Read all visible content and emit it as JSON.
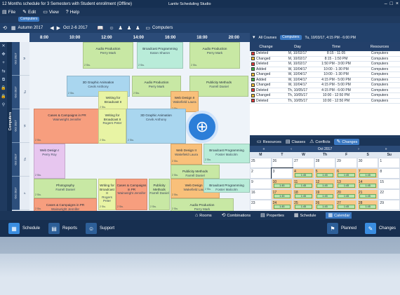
{
  "title": "12 Months schedule for 3 Semesters with Student enrollment",
  "title_suffix": "(Offline)",
  "app_name": "Lantiv Scheduling Studio",
  "menu": [
    "File",
    "Edit",
    "View",
    "Help"
  ],
  "view_selector": "Computers",
  "term": "Autumn 2017",
  "date_range": "Oct 2-6 2017",
  "resource_type": "Computers",
  "right_filter": {
    "all_courses": "All Courses",
    "computers": "Computers",
    "datetime": "Tu, 10/03/17, 4:15 PM - 6:00 PM",
    "all_types": "All Types"
  },
  "times": [
    "8:00",
    "10:00",
    "12:00",
    "14:00",
    "16:00",
    "18:00",
    "20:00"
  ],
  "resource_label": "Computers",
  "weeks": [
    "Oct 2017",
    "Oct 2017",
    "Oct 2017",
    "Oct 2017",
    "Oct 2017"
  ],
  "days": [
    "M",
    "Tu",
    "W",
    "Th",
    "F"
  ],
  "events": [
    {
      "name": "Audio Production",
      "teacher": "Perry Mark",
      "color": "#c8e8a4",
      "corner": "2 Stu."
    },
    {
      "name": "Broadcast Programming",
      "teacher": "Eaton Sharon",
      "color": "#b9ecd9",
      "corner": "2 Stu."
    },
    {
      "name": "Audio Production",
      "teacher": "Perry Mark",
      "color": "#c8e8a4",
      "corner": "2 Stu."
    },
    {
      "name": "3D Graphic Animation",
      "teacher": "Cevik Anthony",
      "color": "#a9d6ef",
      "corner": "2 Stu."
    },
    {
      "name": "Audio Production",
      "teacher": "Perry Mark",
      "color": "#c8e8a4",
      "corner": "2 Stu."
    },
    {
      "name": "Publicity Methods",
      "teacher": "Farrell Daniel",
      "color": "#c8e8a4",
      "corner": "2 Stu."
    },
    {
      "name": "Writing for Broadcast II",
      "teacher": "",
      "color": "#e8f4a4",
      "corner": "2 Stu."
    },
    {
      "name": "Web Design II",
      "teacher": "Wakefield Laura",
      "color": "#f9c07a",
      "corner": "2 Stu."
    },
    {
      "name": "Cases & Campaigns in PR",
      "teacher": "Wainwright Jennifer",
      "color": "#f79e7e",
      "corner": "2 Stu."
    },
    {
      "name": "Writing for Broadcast II",
      "teacher": "Rogers Peter",
      "color": "#e8f4a4",
      "corner": "2 Stu."
    },
    {
      "name": "3D Graphic Animation",
      "teacher": "Cevik Anthony",
      "color": "#a9d6ef",
      "corner": "2 Stu."
    },
    {
      "name": "Web Design I",
      "teacher": "Perry Roy",
      "color": "#e7c6ef",
      "corner": "2 Stu."
    },
    {
      "name": "Web Design II",
      "teacher": "Wakefield Laura",
      "color": "#f9c07a",
      "corner": "2 Stu."
    },
    {
      "name": "Broadcast Programming",
      "teacher": "Foster Malcolm",
      "color": "#b9ecd9",
      "corner": "2 Stu."
    },
    {
      "name": "Publicity Methods",
      "teacher": "Farrell Daniel",
      "color": "#c8e8a4",
      "corner": "2 Stu."
    },
    {
      "name": "Photography",
      "teacher": "Farrell Daniel",
      "color": "#c8e8a4",
      "corner": "2 Stu."
    },
    {
      "name": "Writing for Broadcast II",
      "teacher": "Rogers Peter",
      "color": "#e8f4a4",
      "corner": "2 Stu."
    },
    {
      "name": "Cases & Campaigns in PR",
      "teacher": "Wainwright Jennifer",
      "color": "#f79e7e",
      "corner": "2 Stu."
    },
    {
      "name": "Publicity Methods",
      "teacher": "Farrell Daniel",
      "color": "#c8e8a4",
      "corner": "2 Stu."
    },
    {
      "name": "Web Design II",
      "teacher": "Wakefield Laura",
      "color": "#f9c07a",
      "corner": "2 Stu."
    },
    {
      "name": "Broadcast Programming",
      "teacher": "Foster Malcolm",
      "color": "#b9ecd9",
      "corner": "2 Stu."
    },
    {
      "name": "Cases & Campaigns in PR",
      "teacher": "Wainwright Jennifer",
      "color": "#f79e7e",
      "corner": "2 Stu."
    },
    {
      "name": "Audio Production",
      "teacher": "Perry Mark",
      "color": "#c8e8a4",
      "corner": "2 Stu."
    }
  ],
  "changes_header": [
    "Change",
    "Day",
    "Time",
    "Resources"
  ],
  "changes": [
    {
      "change": "Deleted",
      "day": "M, 10/02/17",
      "time": "8:15 - 11:05",
      "res": "Computers",
      "color": "#e23b3b"
    },
    {
      "change": "Changed",
      "day": "M, 10/02/17",
      "time": "8:15 - 1:50 PM",
      "res": "Computers",
      "color": "#f2c13a"
    },
    {
      "change": "Deleted",
      "day": "M, 10/02/17",
      "time": "1:50 PM - 3:00 PM",
      "res": "Computers",
      "color": "#e23b3b"
    },
    {
      "change": "Added",
      "day": "W, 10/04/17",
      "time": "10:00 - 1:30 PM",
      "res": "Computers",
      "color": "#3ab04b"
    },
    {
      "change": "Changed",
      "day": "W, 10/04/17",
      "time": "10:00 - 1:30 PM",
      "res": "Computers",
      "color": "#f2c13a"
    },
    {
      "change": "Added",
      "day": "W, 10/04/17",
      "time": "4:15 PM - 5:00 PM",
      "res": "Computers",
      "color": "#3ab04b"
    },
    {
      "change": "Changed",
      "day": "W, 10/04/17",
      "time": "4:15 PM - 5:00 PM",
      "res": "Computers",
      "color": "#f2c13a"
    },
    {
      "change": "Deleted",
      "day": "Th, 10/05/17",
      "time": "4:15 PM - 6:00 PM",
      "res": "Computers",
      "color": "#e23b3b"
    },
    {
      "change": "Changed",
      "day": "Th, 10/05/17",
      "time": "10:00 - 12:50 PM",
      "res": "Computers",
      "color": "#f2c13a"
    },
    {
      "change": "Deleted",
      "day": "Th, 10/05/17",
      "time": "10:00 - 12:50 PM",
      "res": "Computers",
      "color": "#e23b3b"
    }
  ],
  "panel_tabs": [
    "Resources",
    "Classes",
    "Conflicts",
    "Changes"
  ],
  "calendar": {
    "month": "Oct 2017",
    "dow": [
      "M",
      "T",
      "W",
      "Th",
      "F",
      "S",
      "Su"
    ],
    "cells": [
      "25",
      "26",
      "27",
      "28",
      "29",
      "30",
      "1",
      "2",
      "3",
      "4",
      "5",
      "6",
      "7",
      "8",
      "9",
      "10",
      "11",
      "12",
      "13",
      "14",
      "15",
      "16",
      "17",
      "18",
      "19",
      "20",
      "21",
      "22",
      "23",
      "24",
      "25",
      "26",
      "27",
      "28",
      "29"
    ],
    "chip": "1:45"
  },
  "bottom_tabs": [
    "Rooms",
    "Combinations",
    "Properties",
    "Schedule",
    "Calendar"
  ],
  "footer": [
    "Schedule",
    "Reports",
    "Support",
    "Planned",
    "Changes"
  ]
}
